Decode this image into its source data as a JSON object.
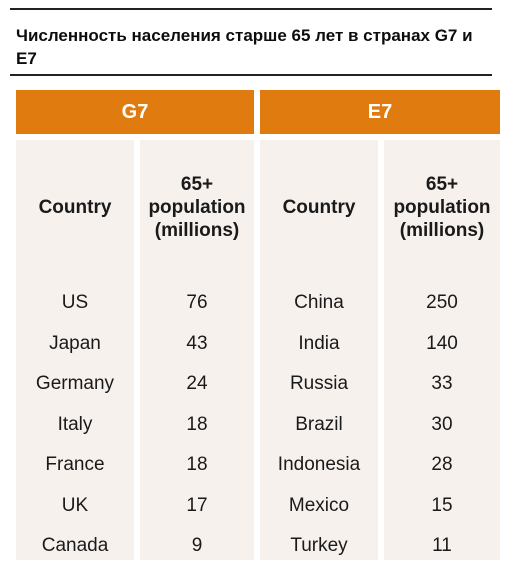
{
  "title": "Численность населения старше 65 лет в странах G7 и E7",
  "table": {
    "groups": [
      "G7",
      "E7"
    ],
    "headers": {
      "country": "Country",
      "population_line1": "65+",
      "population_line2": "population",
      "population_line3": "(millions)"
    },
    "rows": [
      {
        "g7_country": "US",
        "g7_value": "76",
        "e7_country": "China",
        "e7_value": "250"
      },
      {
        "g7_country": "Japan",
        "g7_value": "43",
        "e7_country": "India",
        "e7_value": "140"
      },
      {
        "g7_country": "Germany",
        "g7_value": "24",
        "e7_country": "Russia",
        "e7_value": "33"
      },
      {
        "g7_country": "Italy",
        "g7_value": "18",
        "e7_country": "Brazil",
        "e7_value": "30"
      },
      {
        "g7_country": "France",
        "g7_value": "18",
        "e7_country": "Indonesia",
        "e7_value": "28"
      },
      {
        "g7_country": "UK",
        "g7_value": "17",
        "e7_country": "Mexico",
        "e7_value": "15"
      },
      {
        "g7_country": "Canada",
        "g7_value": "9",
        "e7_country": "Turkey",
        "e7_value": "11"
      }
    ]
  },
  "colors": {
    "header_fill": "#e07b10",
    "cell_fill": "#f7f1ee",
    "header_text": "#ffffff"
  }
}
